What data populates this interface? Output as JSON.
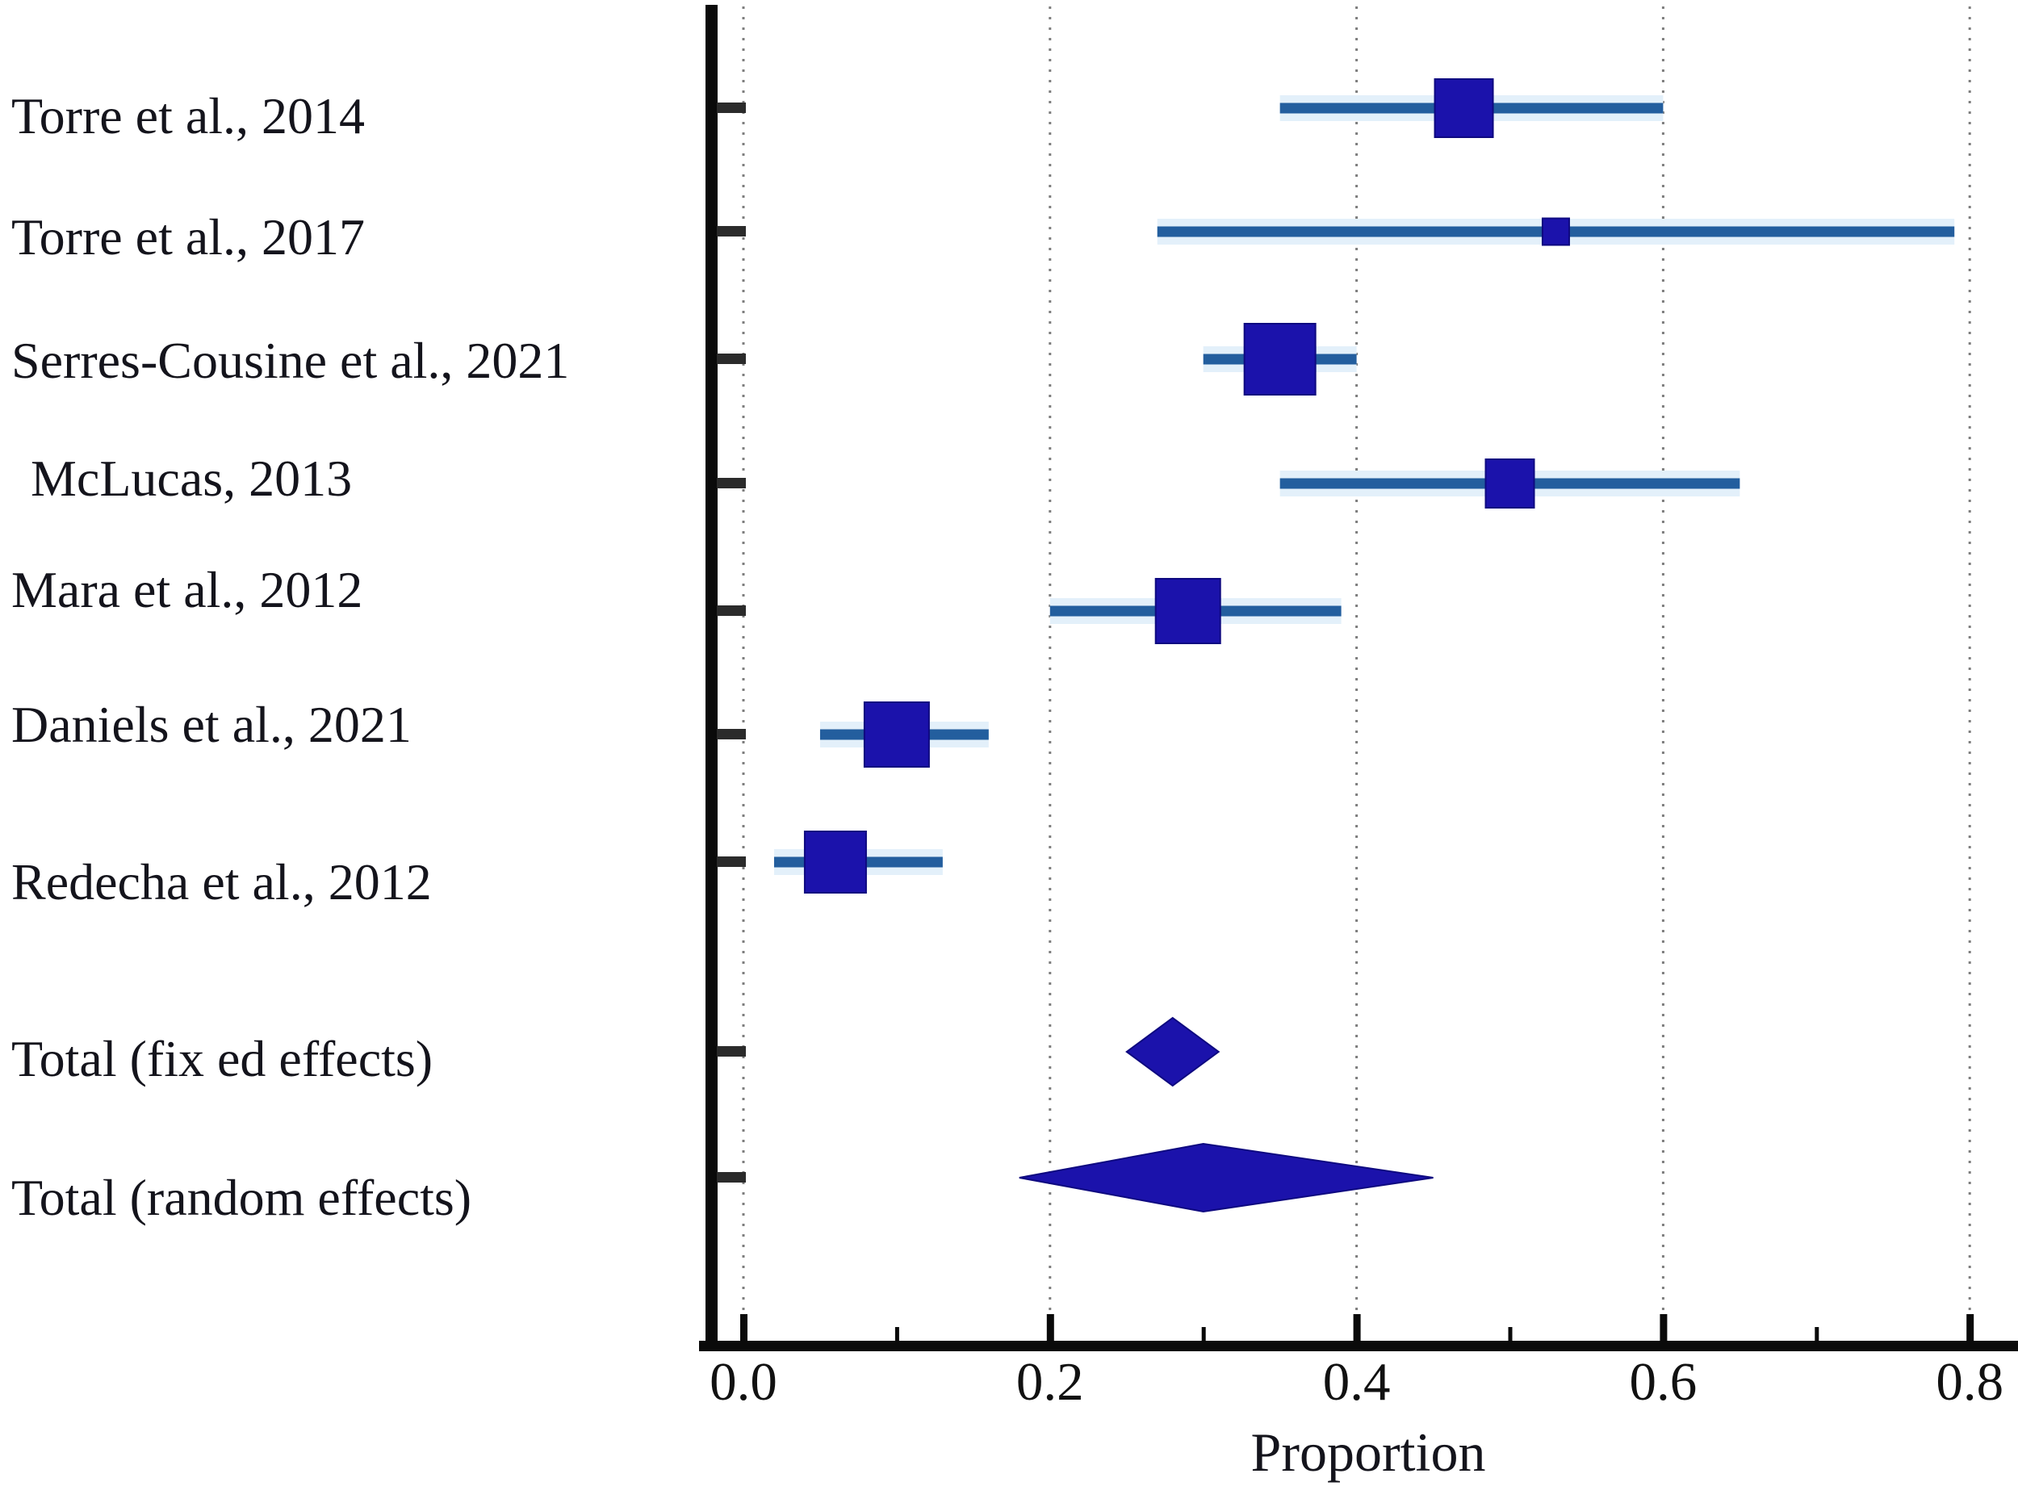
{
  "page": {
    "background": "#ffffff",
    "description": "Forest plot of study proportions with fixed and random effects totals"
  },
  "colors": {
    "marker": "#1b12ab",
    "marker_edge": "#0e0980",
    "ci_line": "#235e9e",
    "ci_halo": "#e3f0fa",
    "grid": "#7e7e7e",
    "axis": "#0a0a0a",
    "row_tick": "#2b2b2b",
    "text": "#14141c"
  },
  "chart_data": {
    "type": "forest",
    "title": "",
    "xlabel": "Proportion",
    "ylabel": "",
    "xlim": [
      0.0,
      0.83
    ],
    "grid": "vertical-dotted",
    "legend_position": "none",
    "x_tick_labels": [
      "0.0",
      "0.2",
      "0.4",
      "0.6",
      "0.8"
    ],
    "x_tick_values": [
      0.0,
      0.2,
      0.4,
      0.6,
      0.8
    ],
    "x_minor_tick_values": [
      0.1,
      0.3,
      0.5,
      0.7
    ],
    "studies": [
      {
        "label": "Torre et al., 2014",
        "estimate": 0.47,
        "ci_low": 0.35,
        "ci_high": 0.6,
        "box_size": 72
      },
      {
        "label": "Torre et al., 2017",
        "estimate": 0.53,
        "ci_low": 0.27,
        "ci_high": 0.79,
        "box_size": 33
      },
      {
        "label": "Serres-Cousine et al., 2021",
        "estimate": 0.35,
        "ci_low": 0.3,
        "ci_high": 0.4,
        "box_size": 88
      },
      {
        "label": "McLucas, 2013",
        "estimate": 0.5,
        "ci_low": 0.35,
        "ci_high": 0.65,
        "box_size": 60
      },
      {
        "label": "Mara et al., 2012",
        "estimate": 0.29,
        "ci_low": 0.2,
        "ci_high": 0.39,
        "box_size": 80
      },
      {
        "label": "Daniels et al., 2021",
        "estimate": 0.1,
        "ci_low": 0.05,
        "ci_high": 0.16,
        "box_size": 80
      },
      {
        "label": "Redecha et al., 2012",
        "estimate": 0.06,
        "ci_low": 0.02,
        "ci_high": 0.13,
        "box_size": 76
      }
    ],
    "totals": [
      {
        "label": "Total (fix ed effects)",
        "estimate": 0.28,
        "ci_low": 0.25,
        "ci_high": 0.31
      },
      {
        "label": "Total (random effects)",
        "estimate": 0.3,
        "ci_low": 0.18,
        "ci_high": 0.45
      }
    ]
  }
}
